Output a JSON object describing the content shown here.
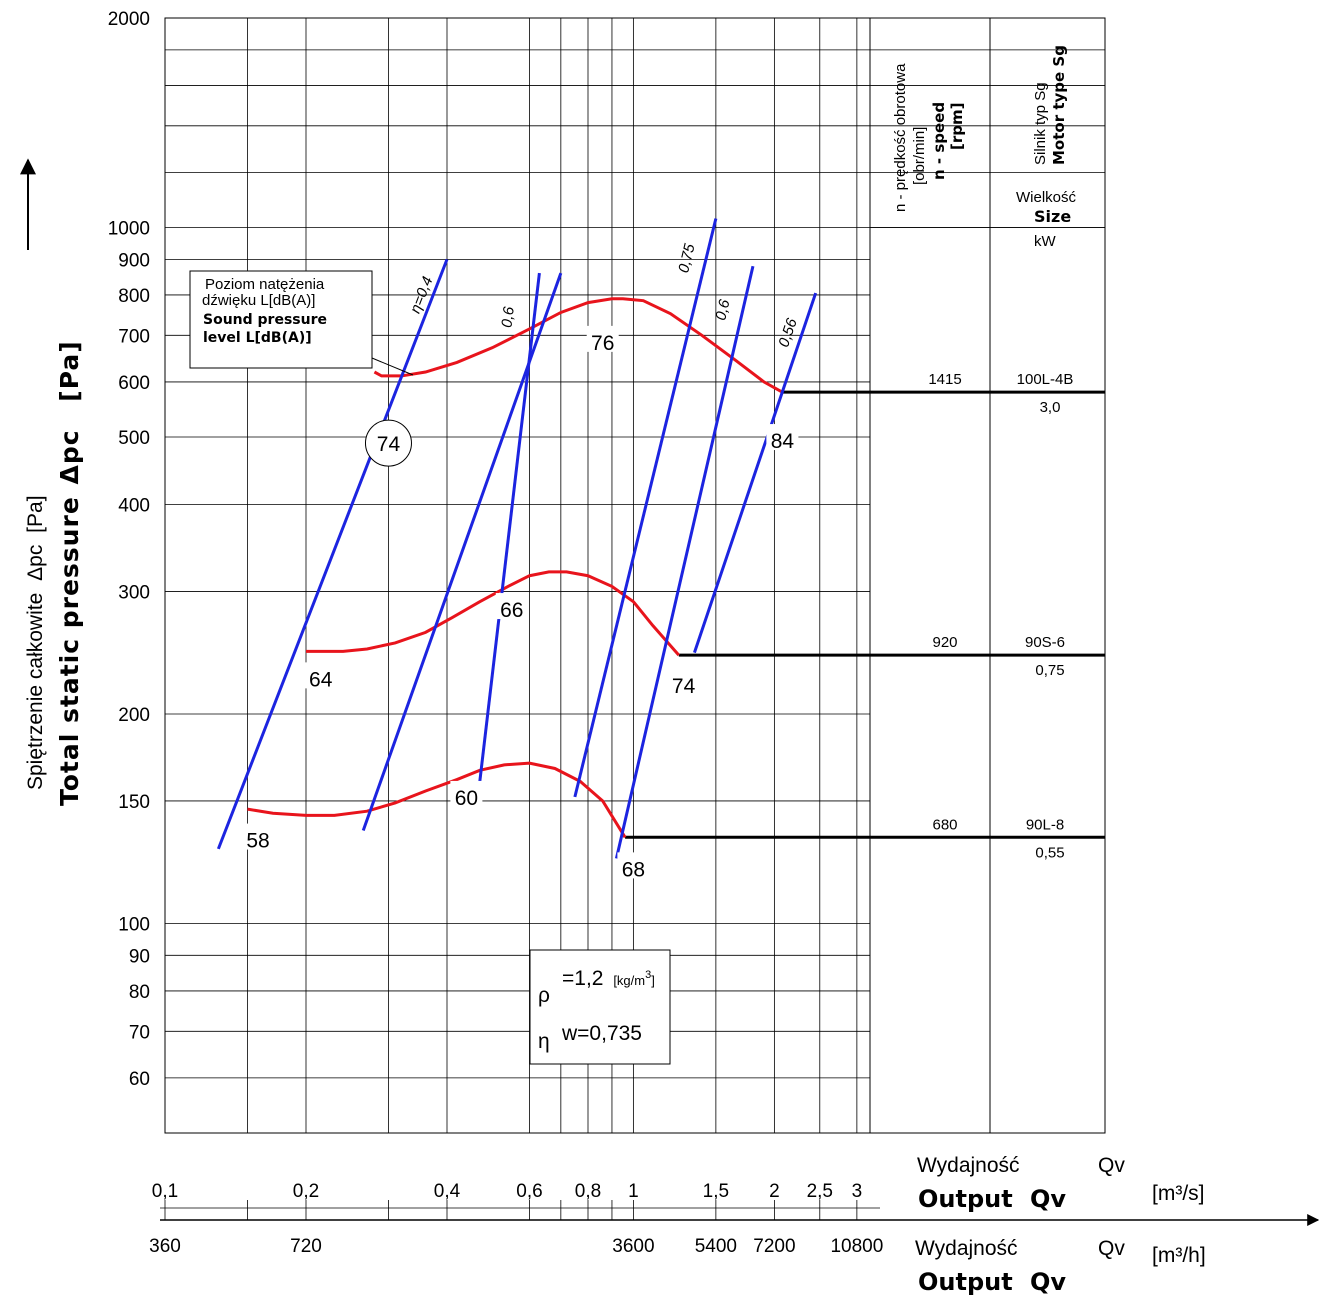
{
  "chart_data": {
    "type": "line",
    "y_axis": {
      "scale": "log",
      "ylim": [
        50,
        2000
      ],
      "ticks": [
        60,
        70,
        80,
        90,
        100,
        150,
        200,
        300,
        400,
        500,
        600,
        700,
        800,
        900,
        1000,
        2000
      ],
      "label_pl": "Spiętrzenie całkowite",
      "label_symbol": "Δpc",
      "label_unit": "[Pa]",
      "label_en": "Total static pressure",
      "label_en_symbol": "Δpc",
      "label_en_unit": "[Pa]"
    },
    "x_axis": {
      "scale": "log",
      "xlim": [
        0.1,
        3.2
      ],
      "ticks_m3s": [
        {
          "label": "0,1",
          "value": 0.1
        },
        {
          "label": "0,2",
          "value": 0.2
        },
        {
          "label": "0,4",
          "value": 0.4
        },
        {
          "label": "0,6",
          "value": 0.6
        },
        {
          "label": "0,8",
          "value": 0.8
        },
        {
          "label": "1",
          "value": 1
        },
        {
          "label": "1,5",
          "value": 1.5
        },
        {
          "label": "2",
          "value": 2
        },
        {
          "label": "2,5",
          "value": 2.5
        },
        {
          "label": "3",
          "value": 3
        }
      ],
      "ticks_m3h": [
        {
          "label": "360",
          "value": 0.1
        },
        {
          "label": "720",
          "value": 0.2
        },
        {
          "label": "3600",
          "value": 1
        },
        {
          "label": "5400",
          "value": 1.5
        },
        {
          "label": "7200",
          "value": 2
        },
        {
          "label": "10800",
          "value": 3
        }
      ],
      "extra_gridlines": [
        0.15,
        0.3,
        0.7,
        0.9
      ],
      "label_pl": "Wydajność",
      "label_en": "Output",
      "symbol": "Qv",
      "unit_m3s": "[m³/s]",
      "unit_m3h": "[m³/h]"
    },
    "series": [
      {
        "speed_rpm": "1415",
        "motor": "100L-4B",
        "power_kw": "3,0",
        "color": "#e8141c",
        "x": [
          0.28,
          0.29,
          0.32,
          0.36,
          0.42,
          0.5,
          0.6,
          0.7,
          0.8,
          0.9,
          0.95,
          1.05,
          1.2,
          1.4,
          1.65,
          1.9,
          2.08
        ],
        "y": [
          620,
          612,
          612,
          620,
          640,
          672,
          715,
          755,
          780,
          790,
          790,
          785,
          752,
          700,
          645,
          600,
          580
        ],
        "sound_levels": [
          {
            "value": "74",
            "x": 0.3,
            "y": 490,
            "circled": true
          },
          {
            "value": "76",
            "x": 0.86,
            "y": 685,
            "circled": false
          },
          {
            "value": "84",
            "x": 2.08,
            "y": 495,
            "circled": false
          }
        ]
      },
      {
        "speed_rpm": "920",
        "motor": "90S-6",
        "power_kw": "0,75",
        "color": "#e8141c",
        "x": [
          0.2,
          0.24,
          0.27,
          0.31,
          0.36,
          0.41,
          0.47,
          0.54,
          0.6,
          0.66,
          0.72,
          0.8,
          0.9,
          1.0,
          1.1,
          1.25
        ],
        "y": [
          246,
          246,
          248,
          253,
          262,
          275,
          290,
          305,
          316,
          320,
          320,
          316,
          305,
          290,
          268,
          243
        ],
        "sound_levels": [
          {
            "value": "64",
            "x": 0.215,
            "y": 225,
            "circled": false
          },
          {
            "value": "66",
            "x": 0.55,
            "y": 283,
            "circled": false
          },
          {
            "value": "74",
            "x": 1.28,
            "y": 220,
            "circled": false
          }
        ]
      },
      {
        "speed_rpm": "680",
        "motor": "90L-8",
        "power_kw": "0,55",
        "color": "#e8141c",
        "x": [
          0.15,
          0.17,
          0.2,
          0.23,
          0.27,
          0.31,
          0.36,
          0.42,
          0.47,
          0.53,
          0.6,
          0.68,
          0.77,
          0.86,
          0.96
        ],
        "y": [
          146,
          144,
          143,
          143,
          145,
          149,
          155,
          161,
          166,
          169,
          170,
          167,
          160,
          150,
          133
        ],
        "sound_levels": [
          {
            "value": "58",
            "x": 0.158,
            "y": 132,
            "circled": false
          },
          {
            "value": "60",
            "x": 0.44,
            "y": 152,
            "circled": false
          },
          {
            "value": "68",
            "x": 1.0,
            "y": 120,
            "circled": false
          }
        ]
      }
    ],
    "efficiency_lines": [
      {
        "label": "η=0,4",
        "x": [
          0.13,
          0.4
        ],
        "y": [
          128,
          900
        ],
        "show_label": true
      },
      {
        "label": "",
        "x": [
          0.265,
          0.7
        ],
        "y": [
          136,
          860
        ],
        "show_label": false
      },
      {
        "label": "0,6",
        "x": [
          0.47,
          0.63
        ],
        "y": [
          160,
          860
        ],
        "show_label": true
      },
      {
        "label": "0,75",
        "x": [
          0.75,
          1.5
        ],
        "y": [
          152,
          1030
        ],
        "show_label": true
      },
      {
        "label": "0,6",
        "x": [
          0.92,
          1.8
        ],
        "y": [
          124,
          880
        ],
        "show_label": true
      },
      {
        "label": "0,56",
        "x": [
          1.35,
          2.45
        ],
        "y": [
          245,
          805
        ],
        "show_label": true
      }
    ],
    "motor_table": {
      "col_speed_header_pl": "n - prędkość obrotowa",
      "col_speed_header_unit": "[obr/min]",
      "col_speed_header_en": "n - speed",
      "col_speed_header_en_unit": "[rpm]",
      "col_motor_header_pl": "Silnik typ Sg",
      "col_motor_header_en": "Motor type Sg",
      "size_label_pl": "Wielkość",
      "size_label_en": "Size",
      "power_unit": "kW"
    },
    "legend_box": {
      "line1": "Poziom natężenia",
      "line2": "dźwięku L[dB(A)]",
      "line3": "Sound pressure",
      "line4": "level L[dB(A)]"
    },
    "density_box": {
      "rho_symbol": "ρ",
      "rho_value": "=1,2",
      "rho_unit": "[kg/m",
      "rho_unit_exp": "3",
      "rho_unit_close": "]",
      "eta_symbol": "η",
      "eta_value": "w=0,735"
    }
  }
}
